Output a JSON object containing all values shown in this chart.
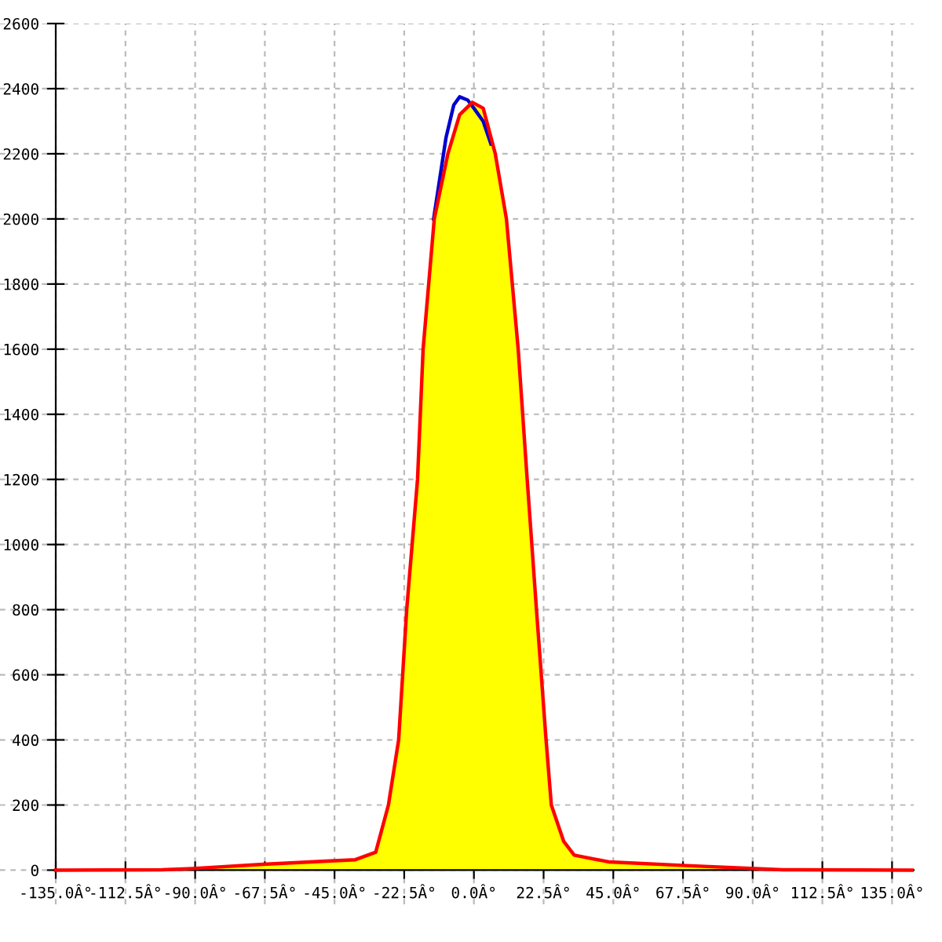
{
  "chart_data": {
    "type": "line",
    "series": [
      {
        "color": "#0000cc",
        "x": [
          -13,
          -9,
          -6.5,
          -4.6,
          -2,
          0,
          3,
          5.5
        ],
        "values": [
          2000,
          2250,
          2350,
          2375,
          2365,
          2340,
          2300,
          2230
        ]
      },
      {
        "type": "area",
        "color": "#ff0000",
        "colors": [
          "#ffff00",
          "#ffff00",
          "#ffff00",
          "#ffff00",
          "#ffff00",
          "#ffff00",
          "#ffff00",
          "#ffff00",
          "#ffff00",
          "#ffff00",
          "#ffff00",
          "#ffff00",
          "#ffff00",
          "#ffff00",
          "#ffff00",
          "#ffff00",
          "#ffff00",
          "#ffff00",
          "#ffff00",
          "#ffff00",
          "#ffff00",
          "#ffff00",
          "#ffff00",
          "#ffff00",
          "#ffff00",
          "#ffff00",
          "#ffff00",
          "#ffff00",
          "#ffff00",
          "#ffff00"
        ],
        "x": [
          -135,
          -100.6,
          -90.8,
          -68,
          -46.5,
          -38.3,
          -31.7,
          -27.6,
          -24.3,
          -21.7,
          -18.2,
          -16.4,
          -12.8,
          -8.4,
          -4.6,
          -0.5,
          3,
          6.9,
          10.5,
          14.3,
          17.2,
          20.2,
          23.3,
          25,
          29,
          32.4,
          43.8,
          68.5,
          99.7,
          142
        ],
        "values": [
          0,
          1,
          5,
          18,
          28,
          32,
          55,
          200,
          400,
          800,
          1200,
          1600,
          2000,
          2200,
          2320,
          2358,
          2340,
          2200,
          2000,
          1600,
          1200,
          800,
          400,
          200,
          88,
          46,
          25,
          14,
          1,
          0
        ]
      }
    ],
    "xlim": [
      -153,
      142
    ],
    "ylim": [
      -105,
      2600
    ],
    "xticks": [
      {
        "value": -135,
        "label": "-135.0Â°"
      },
      {
        "value": -112.5,
        "label": "-112.5Â°"
      },
      {
        "value": -90,
        "label": "-90.0Â°"
      },
      {
        "value": -67.5,
        "label": "-67.5Â°"
      },
      {
        "value": -45,
        "label": "-45.0Â°"
      },
      {
        "value": -22.5,
        "label": "-22.5Â°"
      },
      {
        "value": 0,
        "label": "0.0Â°"
      },
      {
        "value": 22.5,
        "label": "22.5Â°"
      },
      {
        "value": 45,
        "label": "45.0Â°"
      },
      {
        "value": 67.5,
        "label": "67.5Â°"
      },
      {
        "value": 90,
        "label": "90.0Â°"
      },
      {
        "value": 112.5,
        "label": "112.5Â°"
      },
      {
        "value": 135,
        "label": "135.0Â°"
      }
    ],
    "yticks": [
      0,
      200,
      400,
      600,
      800,
      1000,
      1200,
      1400,
      1600,
      1800,
      2000,
      2200,
      2400,
      2600
    ],
    "grid": true,
    "legend": false
  }
}
